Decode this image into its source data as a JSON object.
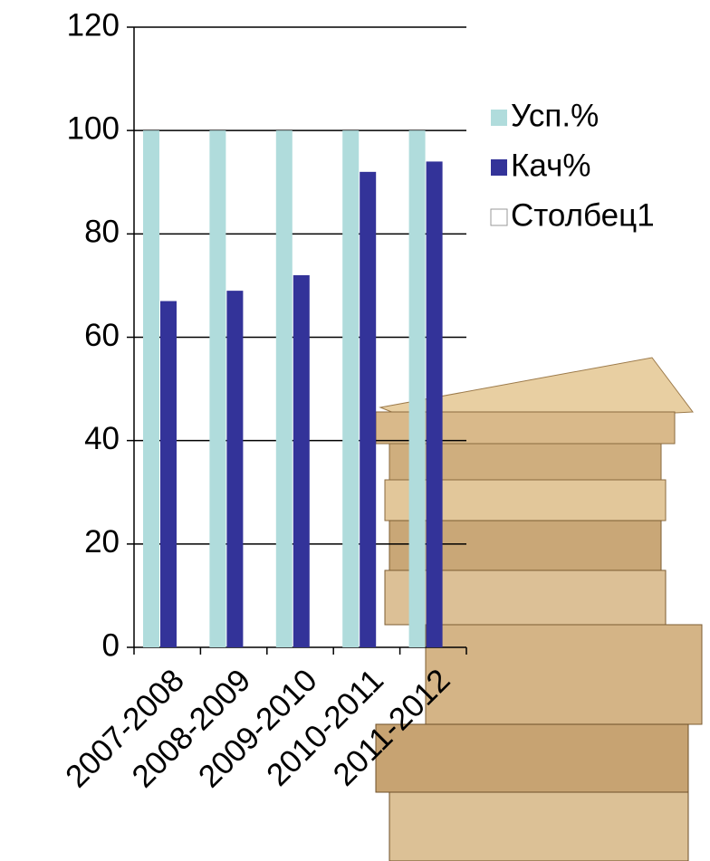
{
  "chart_data": {
    "type": "bar",
    "categories": [
      "2007-2008",
      "2008-2009",
      "2009-2010",
      "2010-2011",
      "2011-2012"
    ],
    "series": [
      {
        "name": "Усп.%",
        "color": "#b0dcdc",
        "values": [
          100,
          100,
          100,
          100,
          100
        ]
      },
      {
        "name": "Кач%",
        "color": "#333399",
        "values": [
          67,
          69,
          72,
          92,
          94
        ]
      },
      {
        "name": "Столбец1",
        "color": "#ffffff",
        "values": [
          null,
          null,
          null,
          null,
          null
        ]
      }
    ],
    "ylim": [
      0,
      120
    ],
    "yticks": [
      0,
      20,
      40,
      60,
      80,
      100,
      120
    ],
    "grid": true,
    "legend": "right"
  }
}
